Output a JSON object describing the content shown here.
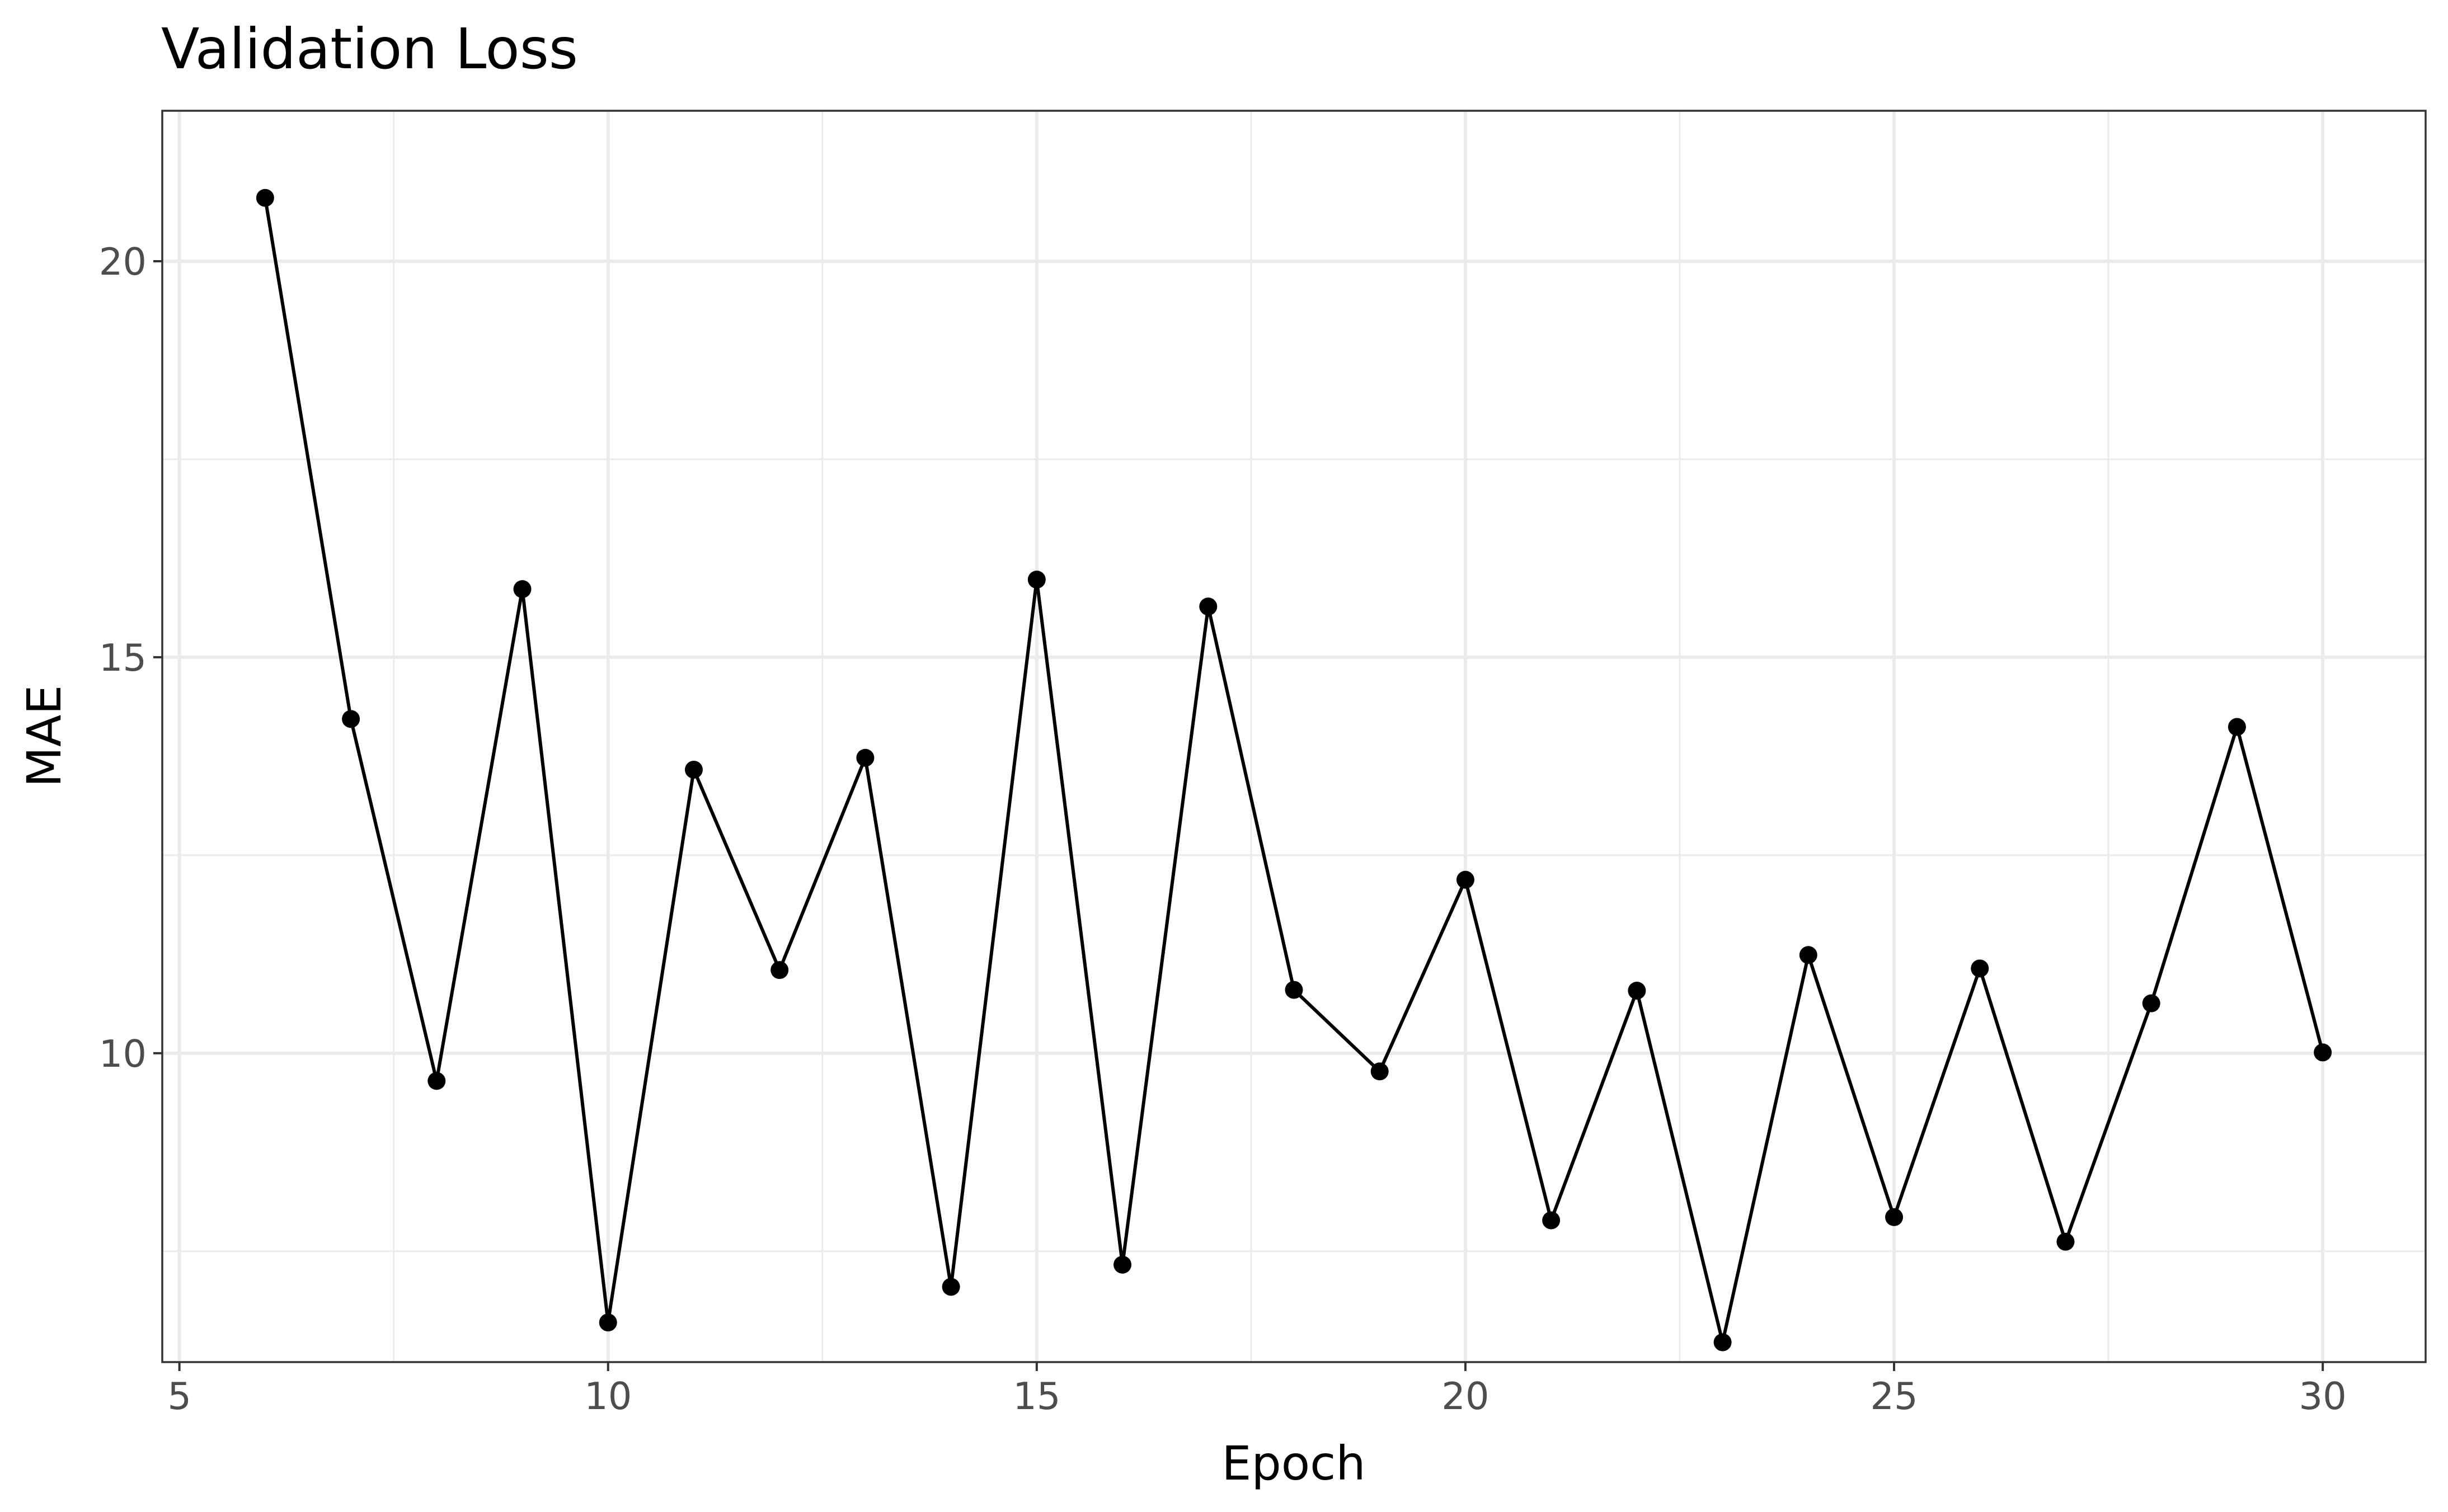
{
  "chart_data": {
    "type": "line",
    "title": "Validation Loss",
    "xlabel": "Epoch",
    "ylabel": "MAE",
    "xlim": [
      4.8,
      31.2
    ],
    "ylim": [
      6.1,
      21.9
    ],
    "x_ticks": [
      5,
      10,
      15,
      20,
      25,
      30
    ],
    "x_tick_labels": [
      "5",
      "10",
      "15",
      "20",
      "25",
      "30"
    ],
    "x_minor_ticks": [
      7.5,
      12.5,
      17.5,
      22.5,
      27.5
    ],
    "y_ticks": [
      10,
      15,
      20
    ],
    "y_tick_labels": [
      "10",
      "15",
      "20"
    ],
    "y_minor_ticks": [
      7.5,
      12.5,
      17.5
    ],
    "grid": true,
    "legend": "none",
    "colors": {
      "series": "#000000",
      "grid": "#ebebeb",
      "border": "#333333",
      "tick_label": "#4d4d4d"
    },
    "series": [
      {
        "x": [
          6,
          7,
          8,
          9,
          10,
          11,
          12,
          13,
          14,
          15,
          16,
          17,
          18,
          19,
          20,
          21,
          22,
          23,
          24,
          25,
          26,
          27,
          28,
          29,
          30
        ],
        "y": [
          20.8,
          14.22,
          9.65,
          15.86,
          6.6,
          13.58,
          11.05,
          13.73,
          7.05,
          15.98,
          7.33,
          15.64,
          10.8,
          9.77,
          12.19,
          7.89,
          10.79,
          6.35,
          11.24,
          7.93,
          11.07,
          7.62,
          10.63,
          14.12,
          10.01
        ]
      }
    ]
  }
}
